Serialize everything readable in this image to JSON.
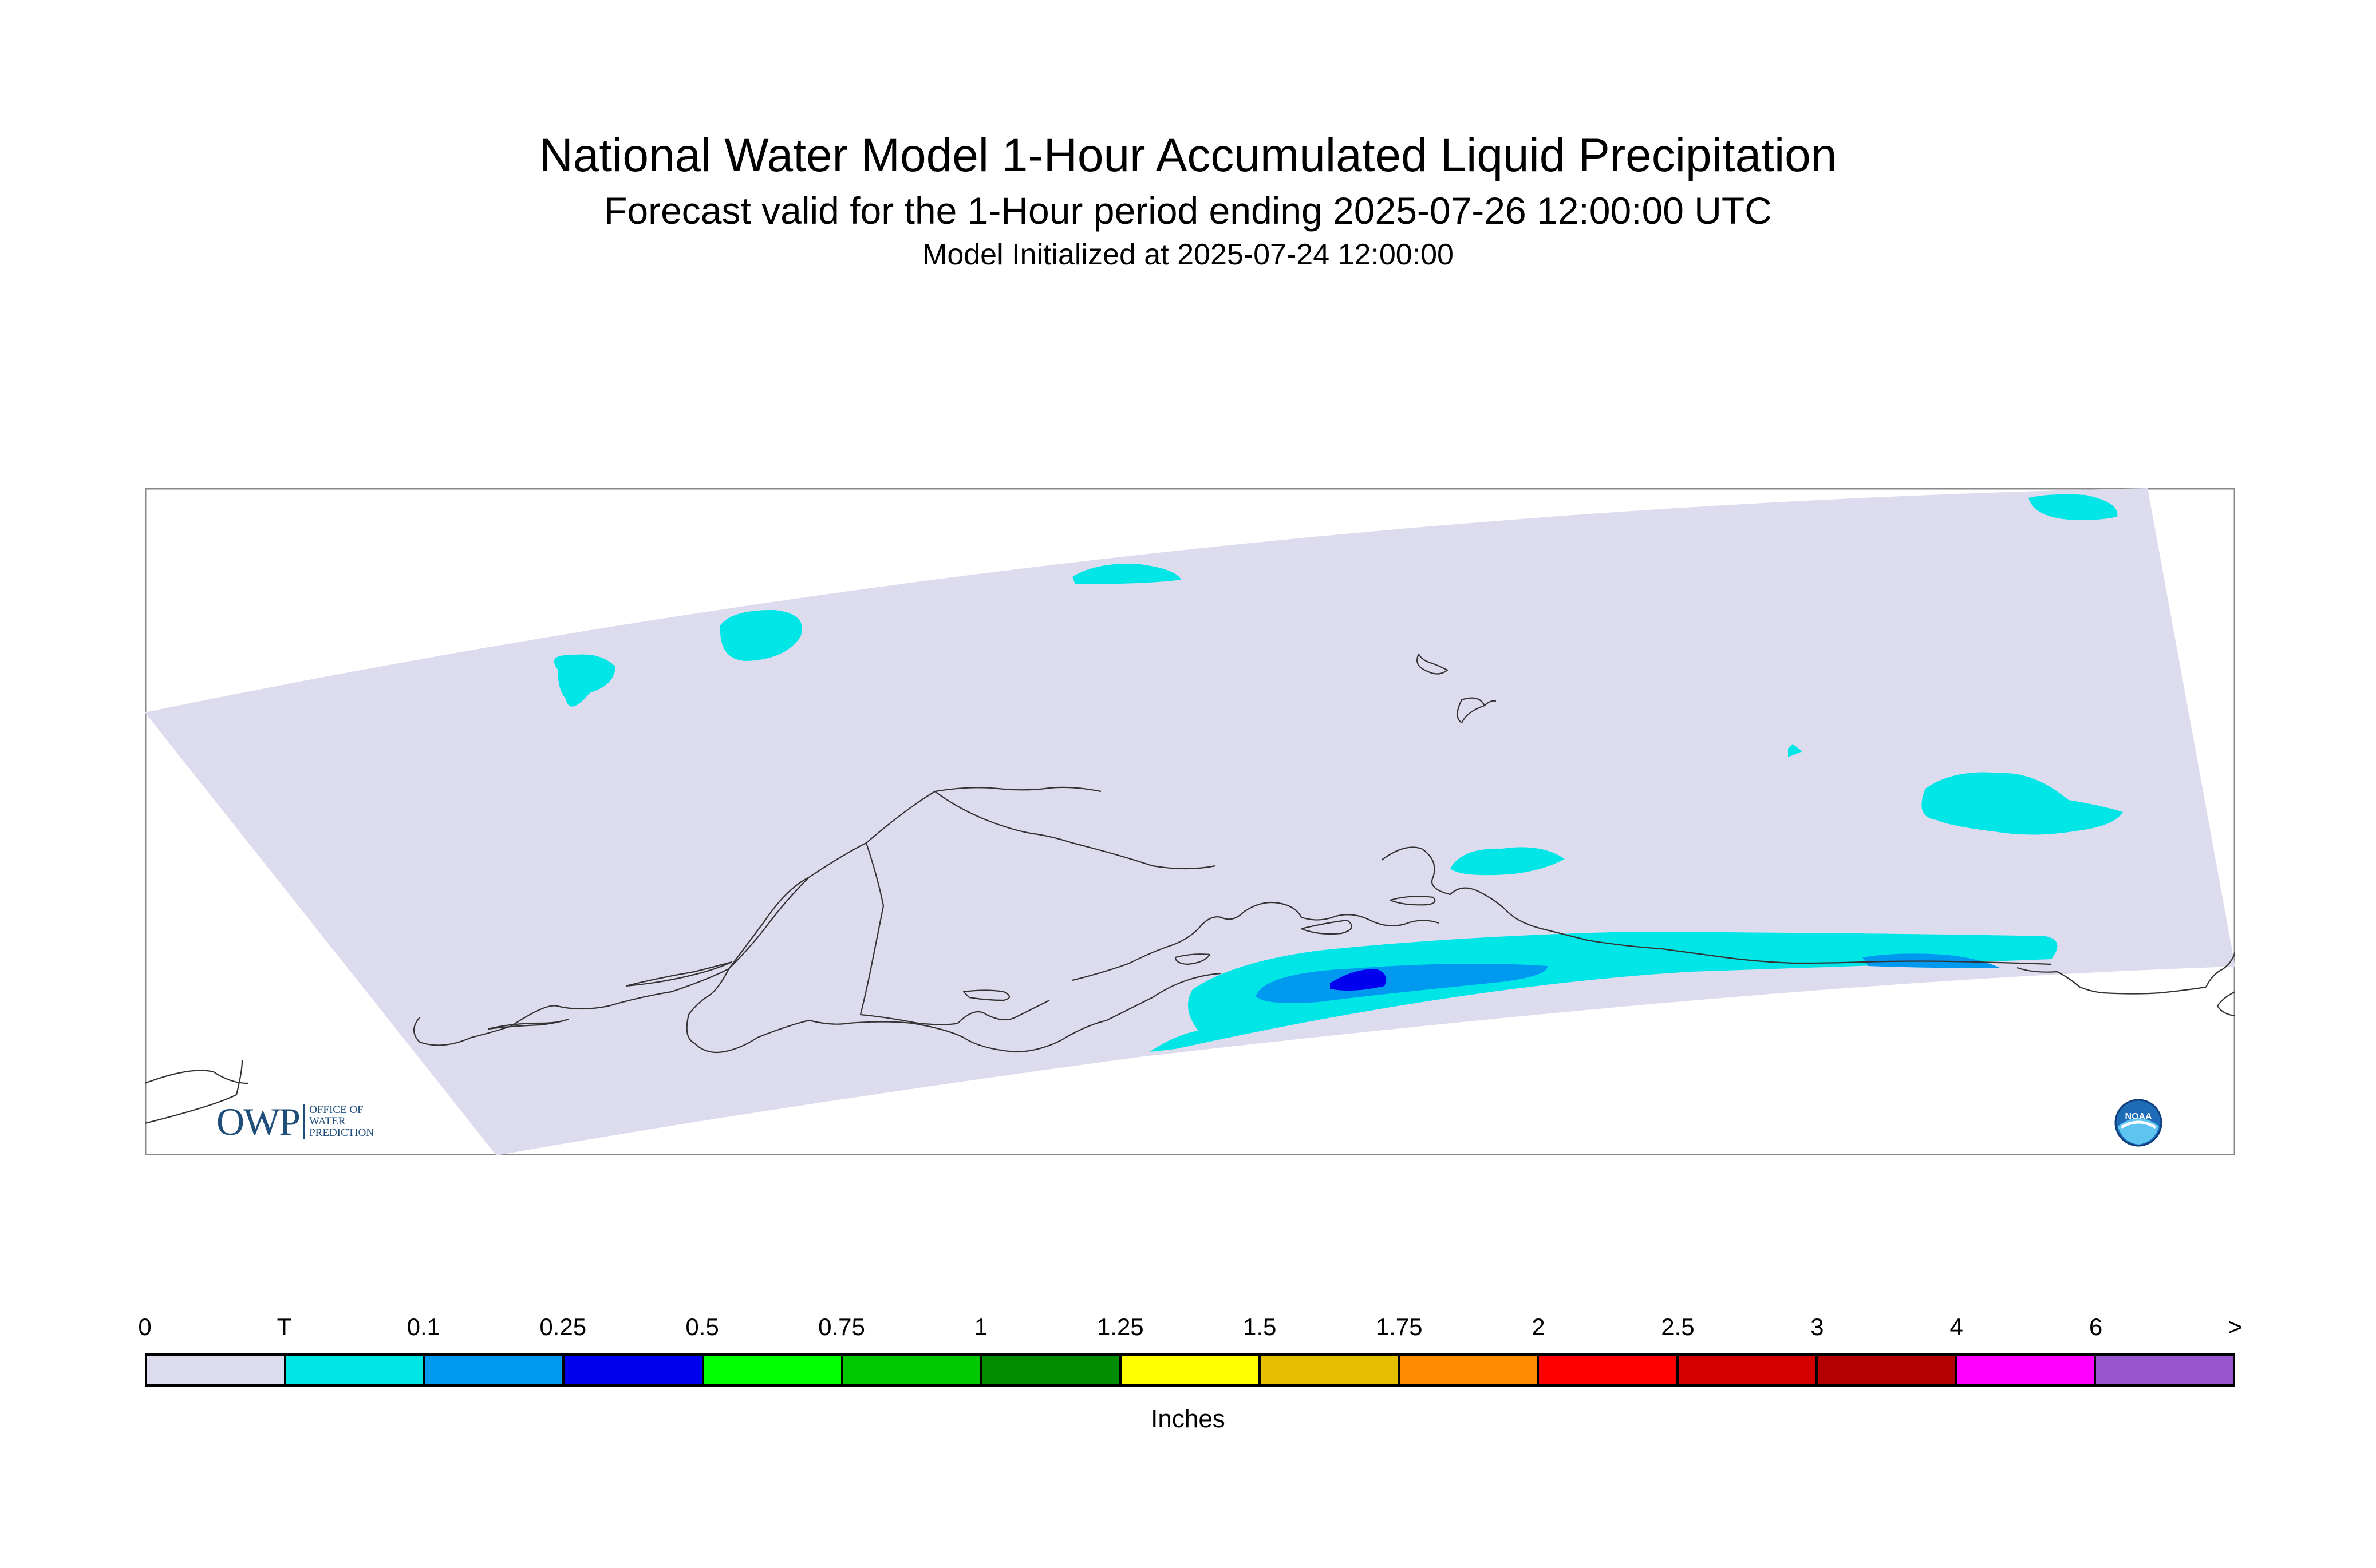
{
  "header": {
    "title": "National Water Model 1-Hour Accumulated Liquid Precipitation",
    "subtitle": "Forecast valid for the 1-Hour period ending 2025-07-26 12:00:00 UTC",
    "init": "Model Initialized at 2025-07-24 12:00:00"
  },
  "map": {
    "domain_color": "#dcdcee",
    "coastline_color": "#333333",
    "precip_colors": {
      "trace": "#00e6e6",
      "light": "#0099f0",
      "moderate": "#0000ee"
    }
  },
  "logos": {
    "owp": {
      "abbrev": "OWP",
      "line1": "OFFICE OF",
      "line2": "WATER",
      "line3": "PREDICTION",
      "color": "#1f4e7a"
    },
    "noaa": {
      "text": "NOAA"
    }
  },
  "legend": {
    "ticks": [
      "0",
      "T",
      "0.1",
      "0.25",
      "0.5",
      "0.75",
      "1",
      "1.25",
      "1.5",
      "1.75",
      "2",
      "2.5",
      "3",
      "4",
      "6",
      ">"
    ],
    "colors": [
      "#dcdcee",
      "#00e6e6",
      "#0099f0",
      "#0000ee",
      "#00ff00",
      "#00c800",
      "#008c00",
      "#ffff00",
      "#e6be00",
      "#ff8c00",
      "#ff0000",
      "#d40000",
      "#b40000",
      "#ff00ff",
      "#9955cc"
    ],
    "units": "Inches"
  }
}
